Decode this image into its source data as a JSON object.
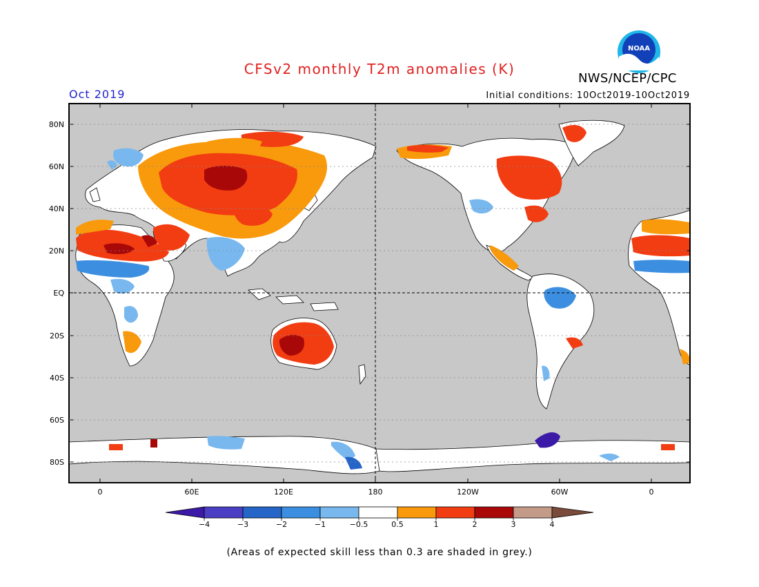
{
  "header": {
    "title": "CFSv2 monthly T2m anomalies (K)",
    "org": "NWS/NCEP/CPC",
    "logo_text": "NOAA",
    "month": "Oct 2019",
    "initial_conditions": "Initial conditions: 10Oct2019-10Oct2019"
  },
  "map": {
    "lat_labels": [
      "80N",
      "60N",
      "40N",
      "20N",
      "EQ",
      "20S",
      "40S",
      "60S",
      "80S"
    ],
    "lon_labels": [
      "0",
      "60E",
      "120E",
      "180",
      "120W",
      "60W",
      "0"
    ],
    "ocean_color": "#c8c8c8",
    "land_white": "#ffffff"
  },
  "colorbar": {
    "labels": [
      "-4",
      "-3",
      "-2",
      "-1",
      "-0.5",
      "0.5",
      "1",
      "2",
      "3",
      "4"
    ],
    "colors": [
      "#3b1aa8",
      "#4a3fc4",
      "#2565c8",
      "#3c8fe0",
      "#78b8ee",
      "#ffffff",
      "#f89a0c",
      "#f23c12",
      "#a80808",
      "#c49a88",
      "#7a4a3a"
    ]
  },
  "footnote": "(Areas of expected skill less than 0.3 are shaded in grey.)"
}
